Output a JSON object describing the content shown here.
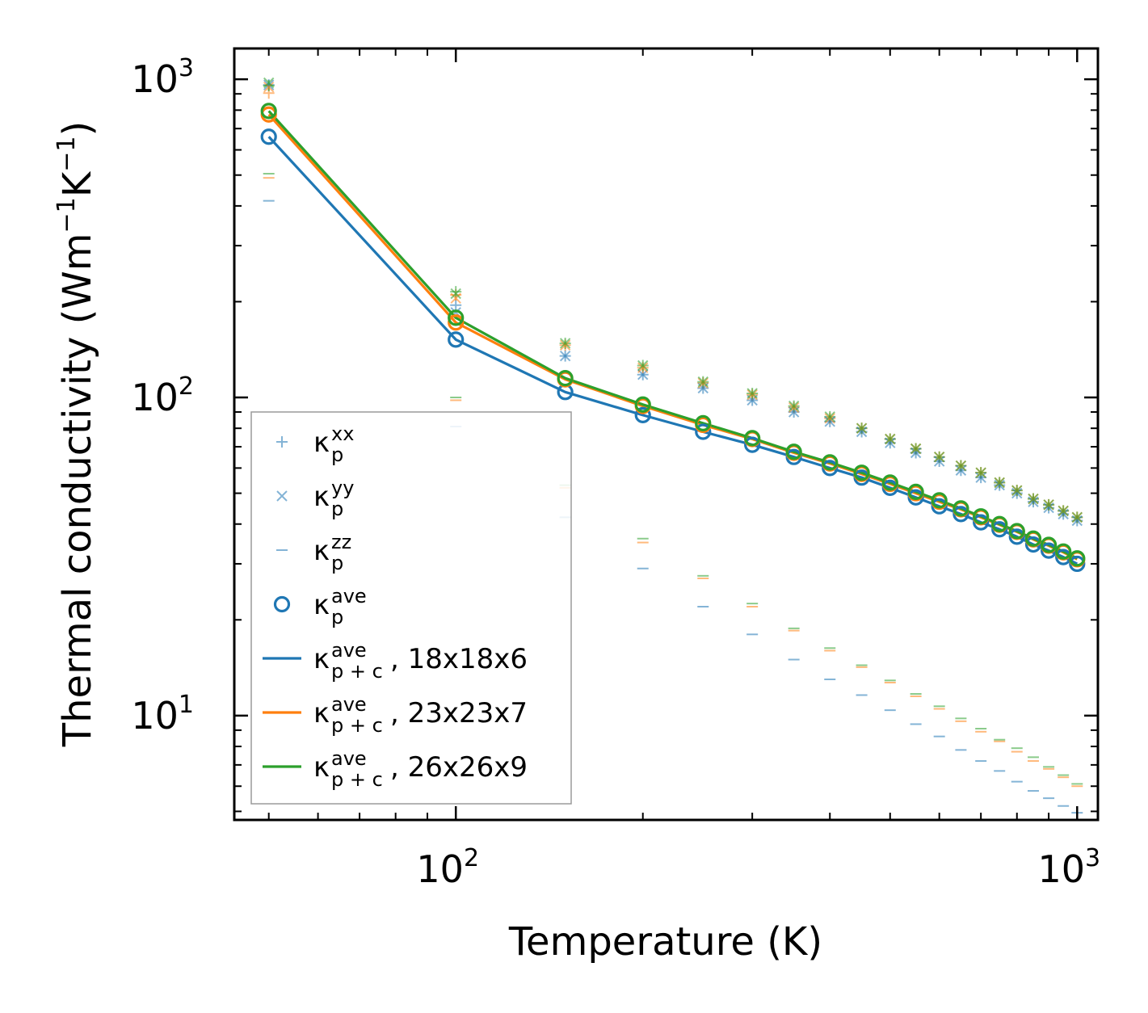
{
  "chart_data": {
    "type": "scatter",
    "scale": {
      "x": "log",
      "y": "log"
    },
    "xlabel": "Temperature (K)",
    "ylabel": {
      "main": "Thermal conductivity (Wm",
      "exp1": "−1",
      "mid": "K",
      "exp2": "−1",
      "end": ")"
    },
    "xlim": [
      44,
      1080
    ],
    "ylim": [
      4.7,
      1250
    ],
    "xticks": [
      {
        "base": "10",
        "exp": "2",
        "value": 100
      },
      {
        "base": "10",
        "exp": "3",
        "value": 1000
      }
    ],
    "yticks": [
      {
        "base": "10",
        "exp": "1",
        "value": 10
      },
      {
        "base": "10",
        "exp": "2",
        "value": 100
      },
      {
        "base": "10",
        "exp": "3",
        "value": 1000
      }
    ],
    "x": [
      50,
      100,
      150,
      200,
      250,
      300,
      350,
      400,
      450,
      500,
      550,
      600,
      650,
      700,
      750,
      800,
      850,
      900,
      950,
      1000
    ],
    "colors": {
      "blue": "#1f77b4",
      "orange": "#ff7f0e",
      "green": "#2ca02c"
    },
    "series": [
      {
        "name": "kxx 18x18x6",
        "kind": "plus",
        "color": "#1f77b4",
        "values": [
          960,
          195,
          135,
          118,
          107,
          98,
          90,
          84,
          78,
          72,
          67,
          63,
          59,
          56,
          53,
          50,
          47,
          45,
          43,
          41
        ]
      },
      {
        "name": "kxx 23x23x7",
        "kind": "plus",
        "color": "#ff7f0e",
        "values": [
          905,
          210,
          146,
          124,
          111,
          102,
          93,
          86,
          80,
          74,
          69,
          65,
          61,
          58,
          54,
          51,
          48,
          46,
          44,
          42
        ]
      },
      {
        "name": "kxx 26x26x9",
        "kind": "plus",
        "color": "#2ca02c",
        "values": [
          955,
          215,
          148,
          126,
          112,
          103,
          94,
          87,
          80,
          74,
          69,
          65,
          61,
          58,
          54,
          51,
          48,
          46,
          44,
          42
        ]
      },
      {
        "name": "kyy 18x18x6",
        "kind": "cross",
        "color": "#1f77b4",
        "values": [
          960,
          185,
          135,
          118,
          107,
          98,
          90,
          84,
          78,
          72,
          67,
          63,
          59,
          56,
          53,
          50,
          47,
          45,
          43,
          41
        ]
      },
      {
        "name": "kyy 23x23x7",
        "kind": "cross",
        "color": "#ff7f0e",
        "values": [
          945,
          205,
          146,
          124,
          111,
          102,
          93,
          86,
          80,
          74,
          69,
          65,
          61,
          58,
          54,
          51,
          48,
          46,
          44,
          42
        ]
      },
      {
        "name": "kyy 26x26x9",
        "kind": "cross",
        "color": "#2ca02c",
        "values": [
          975,
          212,
          148,
          126,
          112,
          103,
          94,
          87,
          80,
          74,
          69,
          65,
          61,
          58,
          54,
          51,
          48,
          46,
          44,
          42
        ]
      },
      {
        "name": "kzz 18x18x6",
        "kind": "dash",
        "color": "#1f77b4",
        "values": [
          415,
          81,
          42,
          29,
          22,
          18,
          15,
          13,
          11.6,
          10.4,
          9.4,
          8.6,
          7.8,
          7.2,
          6.7,
          6.2,
          5.8,
          5.5,
          5.2,
          4.95
        ]
      },
      {
        "name": "kzz 23x23x7",
        "kind": "dash",
        "color": "#ff7f0e",
        "values": [
          490,
          98,
          52,
          35,
          27,
          22,
          18.5,
          16,
          14.2,
          12.7,
          11.5,
          10.5,
          9.6,
          8.9,
          8.3,
          7.7,
          7.2,
          6.8,
          6.4,
          6.0
        ]
      },
      {
        "name": "kzz 26x26x9",
        "kind": "dash",
        "color": "#2ca02c",
        "values": [
          505,
          100,
          53,
          36,
          27.5,
          22.5,
          18.8,
          16.3,
          14.4,
          12.9,
          11.7,
          10.7,
          9.8,
          9.1,
          8.4,
          7.9,
          7.4,
          6.9,
          6.5,
          6.1
        ]
      },
      {
        "name": "kave 18x18x6",
        "kind": "circle",
        "color": "#1f77b4",
        "values": [
          660,
          152,
          104,
          88,
          78,
          71,
          65,
          60,
          56,
          52,
          48.5,
          45.5,
          43,
          40.5,
          38.5,
          36.5,
          34.5,
          33,
          31.5,
          30
        ]
      },
      {
        "name": "kave 23x23x7",
        "kind": "circle",
        "color": "#ff7f0e",
        "values": [
          775,
          172,
          114,
          94,
          82,
          74,
          67,
          62,
          57.5,
          53.5,
          50,
          47,
          44.5,
          42,
          39.8,
          37.8,
          35.8,
          34.2,
          32.6,
          31
        ]
      },
      {
        "name": "kave 26x26x9",
        "kind": "circle",
        "color": "#2ca02c",
        "values": [
          795,
          178,
          115,
          95,
          83,
          74.5,
          67.5,
          62.5,
          58,
          54,
          50.5,
          47.5,
          44.8,
          42.3,
          40,
          38,
          36,
          34.4,
          32.8,
          31.2
        ]
      },
      {
        "name": "kave p+c 18x18x6",
        "kind": "line",
        "color": "#1f77b4",
        "values": [
          660,
          152,
          104,
          88,
          78,
          71,
          65,
          60,
          56,
          52,
          48.5,
          45.5,
          43,
          40.5,
          38.5,
          36.5,
          34.5,
          33,
          31.5,
          30
        ]
      },
      {
        "name": "kave p+c 23x23x7",
        "kind": "line",
        "color": "#ff7f0e",
        "values": [
          775,
          172,
          114,
          94,
          82,
          74,
          67,
          62,
          57.5,
          53.5,
          50,
          47,
          44.5,
          42,
          39.8,
          37.8,
          35.8,
          34.2,
          32.6,
          31
        ]
      },
      {
        "name": "kave p+c 26x26x9",
        "kind": "line",
        "color": "#2ca02c",
        "values": [
          795,
          178,
          115,
          95,
          83,
          74.5,
          67.5,
          62.5,
          58,
          54,
          50.5,
          47.5,
          44.8,
          42.3,
          40,
          38,
          36,
          34.4,
          32.8,
          31.2
        ]
      }
    ],
    "legend": {
      "location": "lower-left",
      "entries": [
        {
          "kind": "plus",
          "color": "#1f77b4",
          "base": "κ",
          "sup": "xx",
          "sub": "p",
          "suffix": ""
        },
        {
          "kind": "cross",
          "color": "#1f77b4",
          "base": "κ",
          "sup": "yy",
          "sub": "p",
          "suffix": ""
        },
        {
          "kind": "dash",
          "color": "#1f77b4",
          "base": "κ",
          "sup": "zz",
          "sub": "p",
          "suffix": ""
        },
        {
          "kind": "circle",
          "color": "#1f77b4",
          "base": "κ",
          "sup": "ave",
          "sub": "p",
          "suffix": ""
        },
        {
          "kind": "line",
          "color": "#1f77b4",
          "base": "κ",
          "sup": "ave",
          "sub": "p + c",
          "suffix": ", 18x18x6"
        },
        {
          "kind": "line",
          "color": "#ff7f0e",
          "base": "κ",
          "sup": "ave",
          "sub": "p + c",
          "suffix": ", 23x23x7"
        },
        {
          "kind": "line",
          "color": "#2ca02c",
          "base": "κ",
          "sup": "ave",
          "sub": "p + c",
          "suffix": ", 26x26x9"
        }
      ]
    }
  }
}
